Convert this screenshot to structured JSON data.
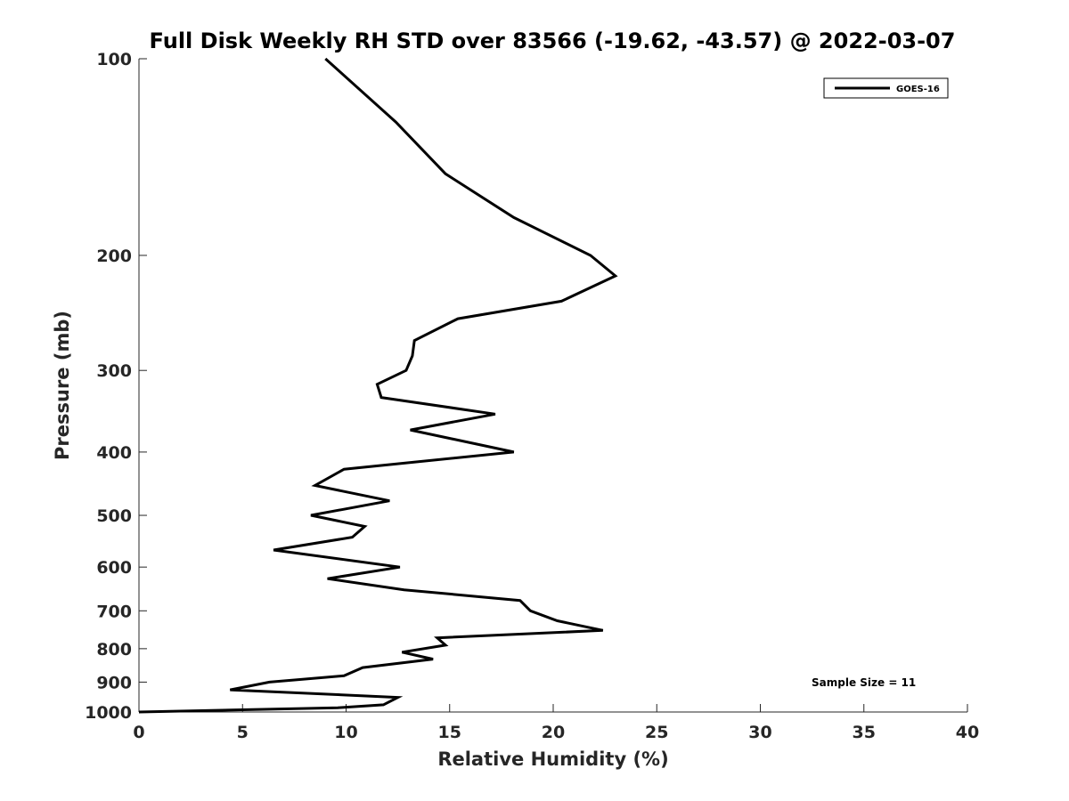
{
  "chart_data": {
    "type": "line",
    "title": "Full Disk Weekly RH STD over 83566 (-19.62, -43.57) @ 2022-03-07",
    "xlabel": "Relative Humidity (%)",
    "ylabel": "Pressure (mb)",
    "xlim": [
      0,
      40
    ],
    "ylim": [
      100,
      1000
    ],
    "yscale": "log",
    "y_reversed": true,
    "grid": false,
    "x_ticks": [
      "0",
      "5",
      "10",
      "15",
      "20",
      "25",
      "30",
      "35",
      "40"
    ],
    "y_ticks": [
      "100",
      "200",
      "300",
      "400",
      "500",
      "600",
      "700",
      "800",
      "900",
      "1000"
    ],
    "legend": {
      "position": "top-right",
      "entries": [
        "GOES-16"
      ]
    },
    "annotation": "Sample Size = 11",
    "series": [
      {
        "name": "GOES-16",
        "points": [
          [
            9.0,
            100
          ],
          [
            12.4,
            125
          ],
          [
            14.8,
            150
          ],
          [
            18.1,
            175
          ],
          [
            21.8,
            200
          ],
          [
            23.0,
            215
          ],
          [
            20.4,
            235
          ],
          [
            15.4,
            250
          ],
          [
            13.3,
            270
          ],
          [
            13.2,
            285
          ],
          [
            12.9,
            300
          ],
          [
            11.5,
            315
          ],
          [
            11.7,
            330
          ],
          [
            17.2,
            350
          ],
          [
            13.1,
            370
          ],
          [
            18.1,
            400
          ],
          [
            9.9,
            425
          ],
          [
            8.5,
            450
          ],
          [
            12.1,
            475
          ],
          [
            8.3,
            500
          ],
          [
            10.9,
            520
          ],
          [
            10.3,
            540
          ],
          [
            6.5,
            565
          ],
          [
            12.6,
            600
          ],
          [
            9.1,
            625
          ],
          [
            12.8,
            650
          ],
          [
            18.4,
            675
          ],
          [
            18.9,
            700
          ],
          [
            20.2,
            725
          ],
          [
            22.4,
            750
          ],
          [
            14.4,
            770
          ],
          [
            14.8,
            790
          ],
          [
            12.7,
            810
          ],
          [
            14.2,
            830
          ],
          [
            10.8,
            855
          ],
          [
            9.9,
            880
          ],
          [
            6.3,
            900
          ],
          [
            4.4,
            925
          ],
          [
            12.5,
            950
          ],
          [
            11.8,
            975
          ],
          [
            9.6,
            985
          ],
          [
            0.0,
            1000
          ]
        ]
      }
    ]
  }
}
